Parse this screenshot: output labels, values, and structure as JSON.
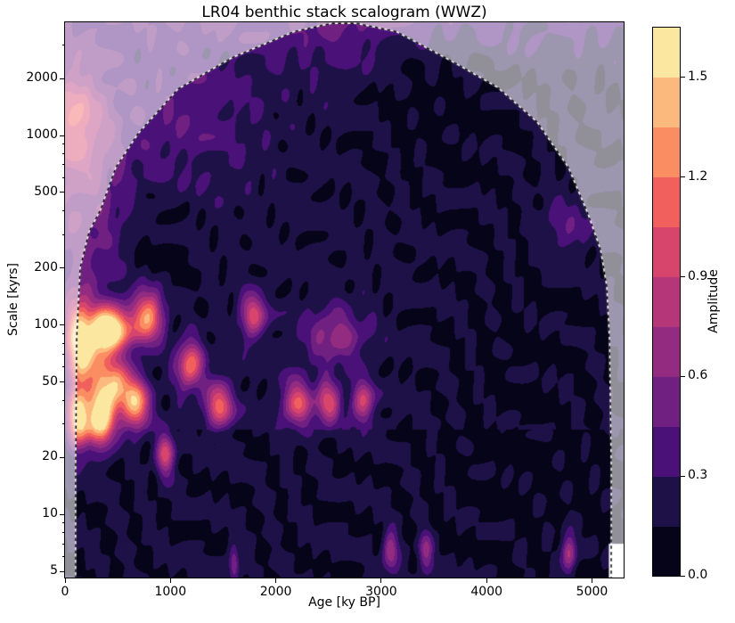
{
  "chart_data": {
    "type": "heatmap",
    "subtype": "wavelet-scalogram-contourf",
    "title": "LR04 benthic stack scalogram (WWZ)",
    "xlabel": "Age [ky BP]",
    "ylabel": "Scale [kyrs]",
    "xlim": [
      0,
      5300
    ],
    "x_ticks": [
      0,
      1000,
      2000,
      3000,
      4000,
      5000
    ],
    "y_scale": "log",
    "ylim": [
      4.6,
      3950
    ],
    "y_ticks": [
      5,
      10,
      20,
      50,
      100,
      200,
      500,
      1000,
      2000
    ],
    "y_minor_ticks": [
      6,
      7,
      8,
      9,
      30,
      40,
      60,
      70,
      80,
      90,
      300,
      400,
      600,
      700,
      800,
      900,
      3000
    ],
    "grid": false,
    "colorbar": {
      "label": "Amplitude",
      "ticks": [
        0.0,
        0.3,
        0.6,
        0.9,
        1.2,
        1.5
      ],
      "vmin": 0.0,
      "vmax": 1.65,
      "level_step": 0.15,
      "colors": [
        "#060418",
        "#1e1148",
        "#4a1179",
        "#702081",
        "#932b80",
        "#b53679",
        "#d8456c",
        "#f1605d",
        "#fb8d62",
        "#fcb97d",
        "#fbe79f"
      ]
    },
    "coi": {
      "description": "cone of influence, dashed black/white line, region outside whitened",
      "shade_alpha": 0.56,
      "dash": [
        3.5,
        3.5
      ],
      "points": [
        [
          101,
          4.6
        ],
        [
          101,
          18
        ],
        [
          110,
          84
        ],
        [
          144,
          200
        ],
        [
          228,
          310
        ],
        [
          338,
          407
        ],
        [
          482,
          678
        ],
        [
          693,
          1022
        ],
        [
          1073,
          1760
        ],
        [
          1581,
          2566
        ],
        [
          2173,
          3530
        ],
        [
          2528,
          3905
        ],
        [
          2765,
          3905
        ],
        [
          3145,
          3530
        ],
        [
          3694,
          2420
        ],
        [
          4100,
          1800
        ],
        [
          4480,
          1177
        ],
        [
          4776,
          677
        ],
        [
          4962,
          385
        ],
        [
          5080,
          250
        ],
        [
          5139,
          161
        ],
        [
          5165,
          84
        ],
        [
          5182,
          18
        ],
        [
          5182,
          4.6
        ]
      ]
    },
    "no_data": {
      "age_min": 5160,
      "scale_max": 7,
      "fill": "#ffffff"
    },
    "field": {
      "base": 0.2,
      "noise_amp": 0.095,
      "level_step": 0.15,
      "low_scale_darken": 0.04,
      "late_age_darken": 0.035,
      "blobs_comment": "amplitude peaks: [age_ky, scale_kyr, amplitude, sigma_age_ky, sigma_log10scale]; strongest ~1.6 at age 420 / 95 kyr scale (100-kyr band), secondary orange cluster ages 100-800 at 20-50 kyr scales, weak purple dots at bottom near ages 1600/3085/3420/4775",
      "blobs": [
        [
          420,
          95,
          1.62,
          130,
          0.085
        ],
        [
          230,
          70,
          0.85,
          120,
          0.12
        ],
        [
          120,
          90,
          0.95,
          80,
          0.15
        ],
        [
          330,
          33,
          1.5,
          95,
          0.11
        ],
        [
          120,
          33,
          1.3,
          70,
          0.12
        ],
        [
          480,
          48,
          1.0,
          110,
          0.1
        ],
        [
          670,
          38,
          1.15,
          85,
          0.09
        ],
        [
          780,
          112,
          1.22,
          105,
          0.095
        ],
        [
          1180,
          62,
          1.0,
          85,
          0.085
        ],
        [
          950,
          21,
          0.8,
          60,
          0.08
        ],
        [
          1460,
          38,
          0.9,
          90,
          0.085
        ],
        [
          1780,
          112,
          0.8,
          80,
          0.08
        ],
        [
          2200,
          39,
          0.85,
          95,
          0.085
        ],
        [
          2490,
          39,
          0.8,
          80,
          0.08
        ],
        [
          2560,
          88,
          0.5,
          190,
          0.1
        ],
        [
          2820,
          39,
          0.75,
          70,
          0.08
        ],
        [
          1100,
          1300,
          0.22,
          480,
          0.25
        ],
        [
          2650,
          3400,
          0.1,
          300,
          0.3
        ],
        [
          2650,
          5600,
          0.35,
          2700,
          0.2
        ],
        [
          60,
          1250,
          0.55,
          190,
          0.18
        ],
        [
          150,
          560,
          0.4,
          300,
          0.5
        ],
        [
          3085,
          6.3,
          0.62,
          48,
          0.075
        ],
        [
          3420,
          6.3,
          0.5,
          48,
          0.075
        ],
        [
          4775,
          6.3,
          0.68,
          48,
          0.075
        ],
        [
          1600,
          5.5,
          0.5,
          32,
          0.065
        ],
        [
          4750,
          330,
          0.25,
          170,
          0.12
        ],
        [
          820,
          200,
          -0.12,
          260,
          0.28
        ],
        [
          3400,
          1800,
          -0.1,
          650,
          0.4
        ],
        [
          4200,
          60,
          -0.06,
          600,
          0.5
        ]
      ]
    }
  }
}
